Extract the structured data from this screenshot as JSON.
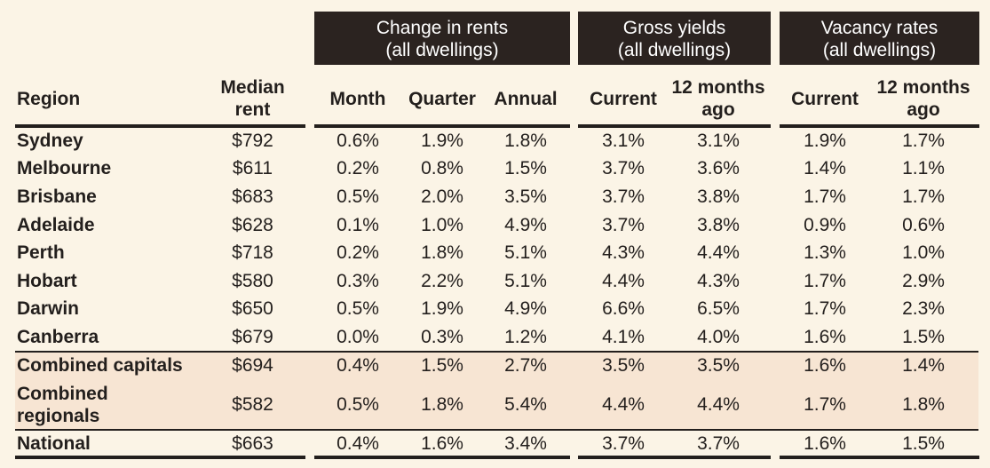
{
  "groups": [
    {
      "line1": "Change in rents",
      "line2": "(all dwellings)"
    },
    {
      "line1": "Gross yields",
      "line2": "(all dwellings)"
    },
    {
      "line1": "Vacancy rates",
      "line2": "(all dwellings)"
    }
  ],
  "headers": {
    "region": "Region",
    "median_rent": [
      "Median",
      "rent"
    ],
    "month": "Month",
    "quarter": "Quarter",
    "annual": "Annual",
    "yield_current": "Current",
    "yield_12m": [
      "12 months",
      "ago"
    ],
    "vacancy_current": "Current",
    "vacancy_12m": [
      "12 months",
      "ago"
    ]
  },
  "rows": [
    {
      "region": [
        "Sydney"
      ],
      "median": "$792",
      "month": "0.6%",
      "quarter": "1.9%",
      "annual": "1.8%",
      "yield_current": "3.1%",
      "yield_12m": "3.1%",
      "vac_current": "1.9%",
      "vac_12m": "1.7%"
    },
    {
      "region": [
        "Melbourne"
      ],
      "median": "$611",
      "month": "0.2%",
      "quarter": "0.8%",
      "annual": "1.5%",
      "yield_current": "3.7%",
      "yield_12m": "3.6%",
      "vac_current": "1.4%",
      "vac_12m": "1.1%"
    },
    {
      "region": [
        "Brisbane"
      ],
      "median": "$683",
      "month": "0.5%",
      "quarter": "2.0%",
      "annual": "3.5%",
      "yield_current": "3.7%",
      "yield_12m": "3.8%",
      "vac_current": "1.7%",
      "vac_12m": "1.7%"
    },
    {
      "region": [
        "Adelaide"
      ],
      "median": "$628",
      "month": "0.1%",
      "quarter": "1.0%",
      "annual": "4.9%",
      "yield_current": "3.7%",
      "yield_12m": "3.8%",
      "vac_current": "0.9%",
      "vac_12m": "0.6%"
    },
    {
      "region": [
        "Perth"
      ],
      "median": "$718",
      "month": "0.2%",
      "quarter": "1.8%",
      "annual": "5.1%",
      "yield_current": "4.3%",
      "yield_12m": "4.4%",
      "vac_current": "1.3%",
      "vac_12m": "1.0%"
    },
    {
      "region": [
        "Hobart"
      ],
      "median": "$580",
      "month": "0.3%",
      "quarter": "2.2%",
      "annual": "5.1%",
      "yield_current": "4.4%",
      "yield_12m": "4.3%",
      "vac_current": "1.7%",
      "vac_12m": "2.9%"
    },
    {
      "region": [
        "Darwin"
      ],
      "median": "$650",
      "month": "0.5%",
      "quarter": "1.9%",
      "annual": "4.9%",
      "yield_current": "6.6%",
      "yield_12m": "6.5%",
      "vac_current": "1.7%",
      "vac_12m": "2.3%"
    },
    {
      "region": [
        "Canberra"
      ],
      "median": "$679",
      "month": "0.0%",
      "quarter": "0.3%",
      "annual": "1.2%",
      "yield_current": "4.1%",
      "yield_12m": "4.0%",
      "vac_current": "1.6%",
      "vac_12m": "1.5%"
    },
    {
      "region": [
        "Combined capitals"
      ],
      "median": "$694",
      "month": "0.4%",
      "quarter": "1.5%",
      "annual": "2.7%",
      "yield_current": "3.5%",
      "yield_12m": "3.5%",
      "vac_current": "1.6%",
      "vac_12m": "1.4%"
    },
    {
      "region": [
        "Combined",
        "regionals"
      ],
      "median": "$582",
      "month": "0.5%",
      "quarter": "1.8%",
      "annual": "5.4%",
      "yield_current": "4.4%",
      "yield_12m": "4.4%",
      "vac_current": "1.7%",
      "vac_12m": "1.8%"
    },
    {
      "region": [
        "National"
      ],
      "median": "$663",
      "month": "0.4%",
      "quarter": "1.6%",
      "annual": "3.4%",
      "yield_current": "3.7%",
      "yield_12m": "3.7%",
      "vac_current": "1.6%",
      "vac_12m": "1.5%"
    }
  ],
  "colors": {
    "background": "#fbf4e6",
    "header_fill": "#2b2320",
    "summary_shade": "#f7e5d3",
    "rule": "#231f1d",
    "text": "#231f1d"
  }
}
